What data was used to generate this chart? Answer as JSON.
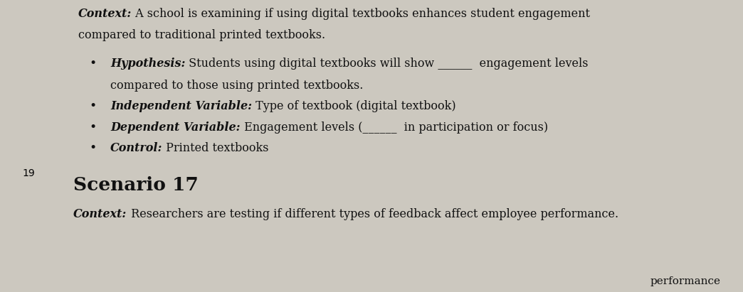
{
  "bg_color": "#ccc8bf",
  "text_color": "#111111",
  "body_fontsize": 11.5,
  "scenario_fontsize": 19,
  "lines": [
    {
      "type": "context",
      "bold": "Context:",
      "normal": " A school is examining if using digital textbooks enhances student engagement"
    },
    {
      "type": "plain",
      "bold": "",
      "normal": "compared to traditional printed textbooks."
    },
    {
      "type": "gap"
    },
    {
      "type": "bullet",
      "bold": "Hypothesis:",
      "normal": " Students using digital textbooks will show ______  engagement levels"
    },
    {
      "type": "plain_indent",
      "bold": "",
      "normal": "compared to those using printed textbooks."
    },
    {
      "type": "bullet",
      "bold": "Independent Variable:",
      "normal": " Type of textbook (digital textbook)"
    },
    {
      "type": "bullet",
      "bold": "Dependent Variable:",
      "normal": " Engagement levels (______  in participation or focus)"
    },
    {
      "type": "bullet",
      "bold": "Control:",
      "normal": " Printed textbooks"
    },
    {
      "type": "gap2"
    },
    {
      "type": "scenario",
      "bold": "Scenario 17",
      "normal": ""
    },
    {
      "type": "gap_small"
    },
    {
      "type": "context",
      "bold": "Context:",
      "normal": " Researchers are testing if different types of feedback affect employee performance."
    },
    {
      "type": "partial_right",
      "bold": "",
      "normal": "performance"
    }
  ]
}
